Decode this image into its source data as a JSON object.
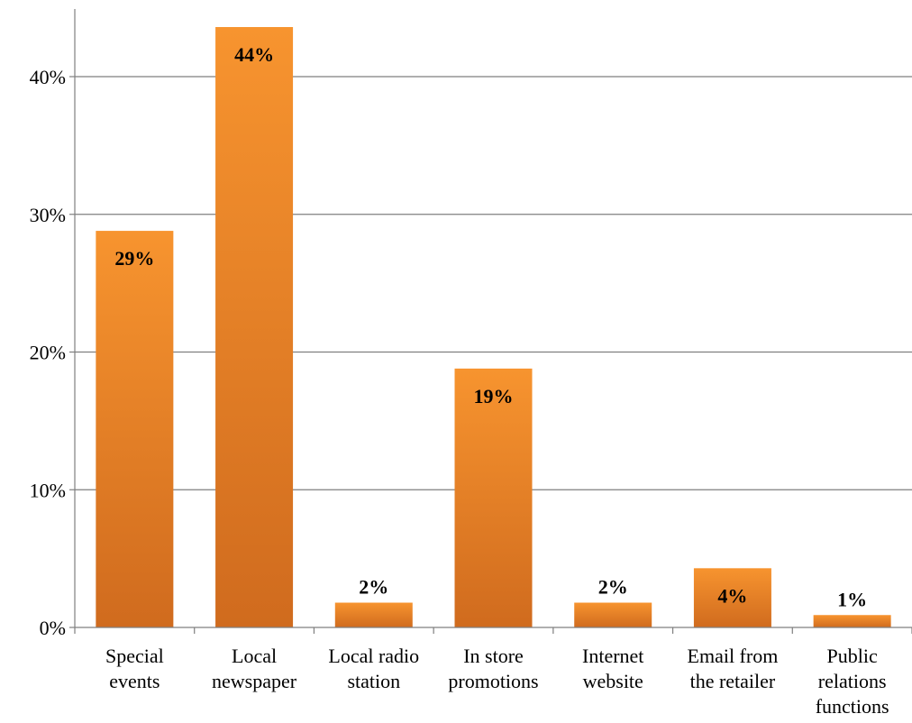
{
  "chart_data": {
    "type": "bar",
    "categories": [
      [
        "Special",
        "events"
      ],
      [
        "Local",
        "newspaper"
      ],
      [
        "Local radio",
        "station"
      ],
      [
        "In store",
        "promotions"
      ],
      [
        "Internet",
        "website"
      ],
      [
        "Email from",
        "the retailer"
      ],
      [
        "Public",
        "relations",
        "functions"
      ]
    ],
    "values": [
      28.8,
      43.6,
      1.8,
      18.8,
      1.8,
      4.3,
      0.9
    ],
    "data_labels": [
      "29%",
      "44%",
      "2%",
      "19%",
      "2%",
      "4%",
      "1%"
    ],
    "title": "",
    "xlabel": "",
    "ylabel": "",
    "ylim": [
      0,
      40
    ],
    "yticks": [
      {
        "value": 0,
        "label": "0%"
      },
      {
        "value": 10,
        "label": "10%"
      },
      {
        "value": 20,
        "label": "20%"
      },
      {
        "value": 30,
        "label": "30%"
      },
      {
        "value": 40,
        "label": "40%"
      }
    ],
    "grid": true,
    "legend": "none",
    "colors": {
      "bar_top": "#f7942f",
      "bar_bottom": "#d06b1e",
      "grid": "#7f7f7f",
      "axis": "#7f7f7f"
    }
  }
}
